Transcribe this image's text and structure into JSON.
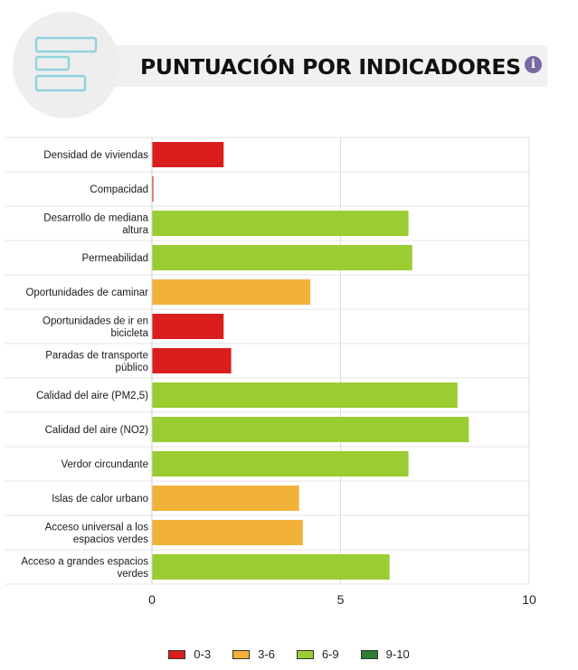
{
  "title": "PUNTUACIÓN POR INDICADORES",
  "info_icon": "i",
  "colors": {
    "red": "#da1e1e",
    "orange": "#f2b138",
    "lightgreen": "#9acd32",
    "darkgreen": "#2e7d32",
    "icon_stroke": "#8fd3df"
  },
  "legend": [
    {
      "label": "0-3",
      "color": "#da1e1e"
    },
    {
      "label": "3-6",
      "color": "#f2b138"
    },
    {
      "label": "6-9",
      "color": "#9acd32"
    },
    {
      "label": "9-10",
      "color": "#2e7d32"
    }
  ],
  "chart_data": {
    "type": "bar",
    "orientation": "horizontal",
    "title": "PUNTUACIÓN POR INDICADORES",
    "categories": [
      "Densidad de viviendas",
      "Compacidad",
      "Desarrollo de mediana altura",
      "Permeabilidad",
      "Oportunidades de caminar",
      "Oportunidades de ir en bicicleta",
      "Paradas de transporte público",
      "Calidad del aire (PM2,5)",
      "Calidad del aire (NO2)",
      "Verdor circundante",
      "Islas de calor urbano",
      "Acceso universal a los espacios verdes",
      "Acceso a grandes espacios verdes"
    ],
    "values": [
      1.9,
      0.03,
      6.8,
      6.9,
      4.2,
      1.9,
      2.1,
      8.1,
      8.4,
      6.8,
      3.9,
      4.0,
      6.3
    ],
    "xlim": [
      0,
      10
    ],
    "xticks": [
      "0",
      "5",
      "10"
    ],
    "grid": true,
    "legend_position": "bottom"
  }
}
